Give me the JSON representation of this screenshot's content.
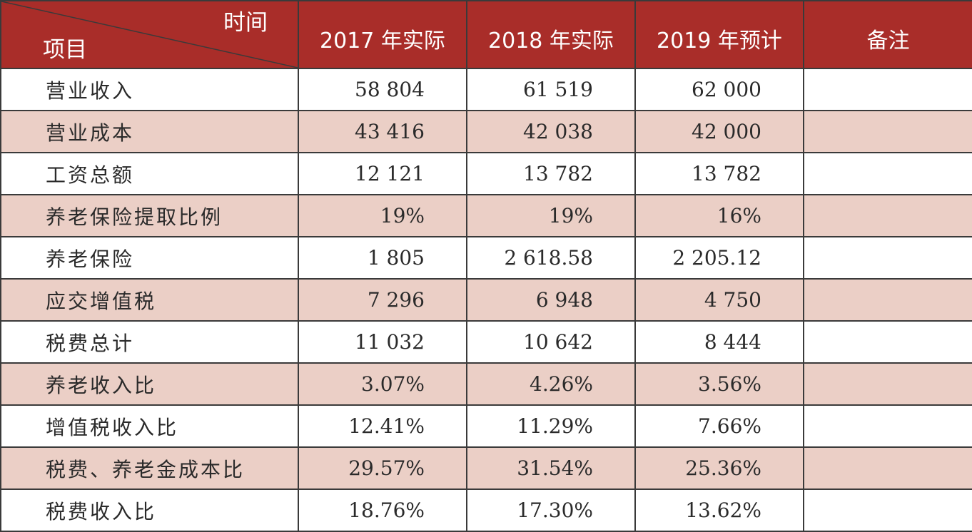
{
  "header": {
    "corner_top": "时间",
    "corner_bottom": "项目",
    "columns": [
      "2017 年实际",
      "2018 年实际",
      "2019 年预计",
      "备注"
    ]
  },
  "rows": [
    {
      "label": "营业收入",
      "values": [
        "58 804",
        "61 519",
        "62 000"
      ],
      "note": ""
    },
    {
      "label": "营业成本",
      "values": [
        "43 416",
        "42 038",
        "42 000"
      ],
      "note": ""
    },
    {
      "label": "工资总额",
      "values": [
        "12 121",
        "13 782",
        "13 782"
      ],
      "note": ""
    },
    {
      "label": "养老保险提取比例",
      "values": [
        "19%",
        "19%",
        "16%"
      ],
      "note": ""
    },
    {
      "label": "养老保险",
      "values": [
        "1 805",
        "2 618.58",
        "2 205.12"
      ],
      "note": ""
    },
    {
      "label": "应交增值税",
      "values": [
        "7 296",
        "6 948",
        "4 750"
      ],
      "note": ""
    },
    {
      "label": "税费总计",
      "values": [
        "11 032",
        "10 642",
        "8 444"
      ],
      "note": ""
    },
    {
      "label": "养老收入比",
      "values": [
        "3.07%",
        "4.26%",
        "3.56%"
      ],
      "note": ""
    },
    {
      "label": "增值税收入比",
      "values": [
        "12.41%",
        "11.29%",
        "7.66%"
      ],
      "note": ""
    },
    {
      "label": "税费、养老金成本比",
      "values": [
        "29.57%",
        "31.54%",
        "25.36%"
      ],
      "note": ""
    },
    {
      "label": "税费收入比",
      "values": [
        "18.76%",
        "17.30%",
        "13.62%"
      ],
      "note": ""
    }
  ],
  "colors": {
    "header_bg": "#a92d29",
    "shaded_row_bg": "#ebcfc6",
    "border": "#3a3a3a"
  }
}
